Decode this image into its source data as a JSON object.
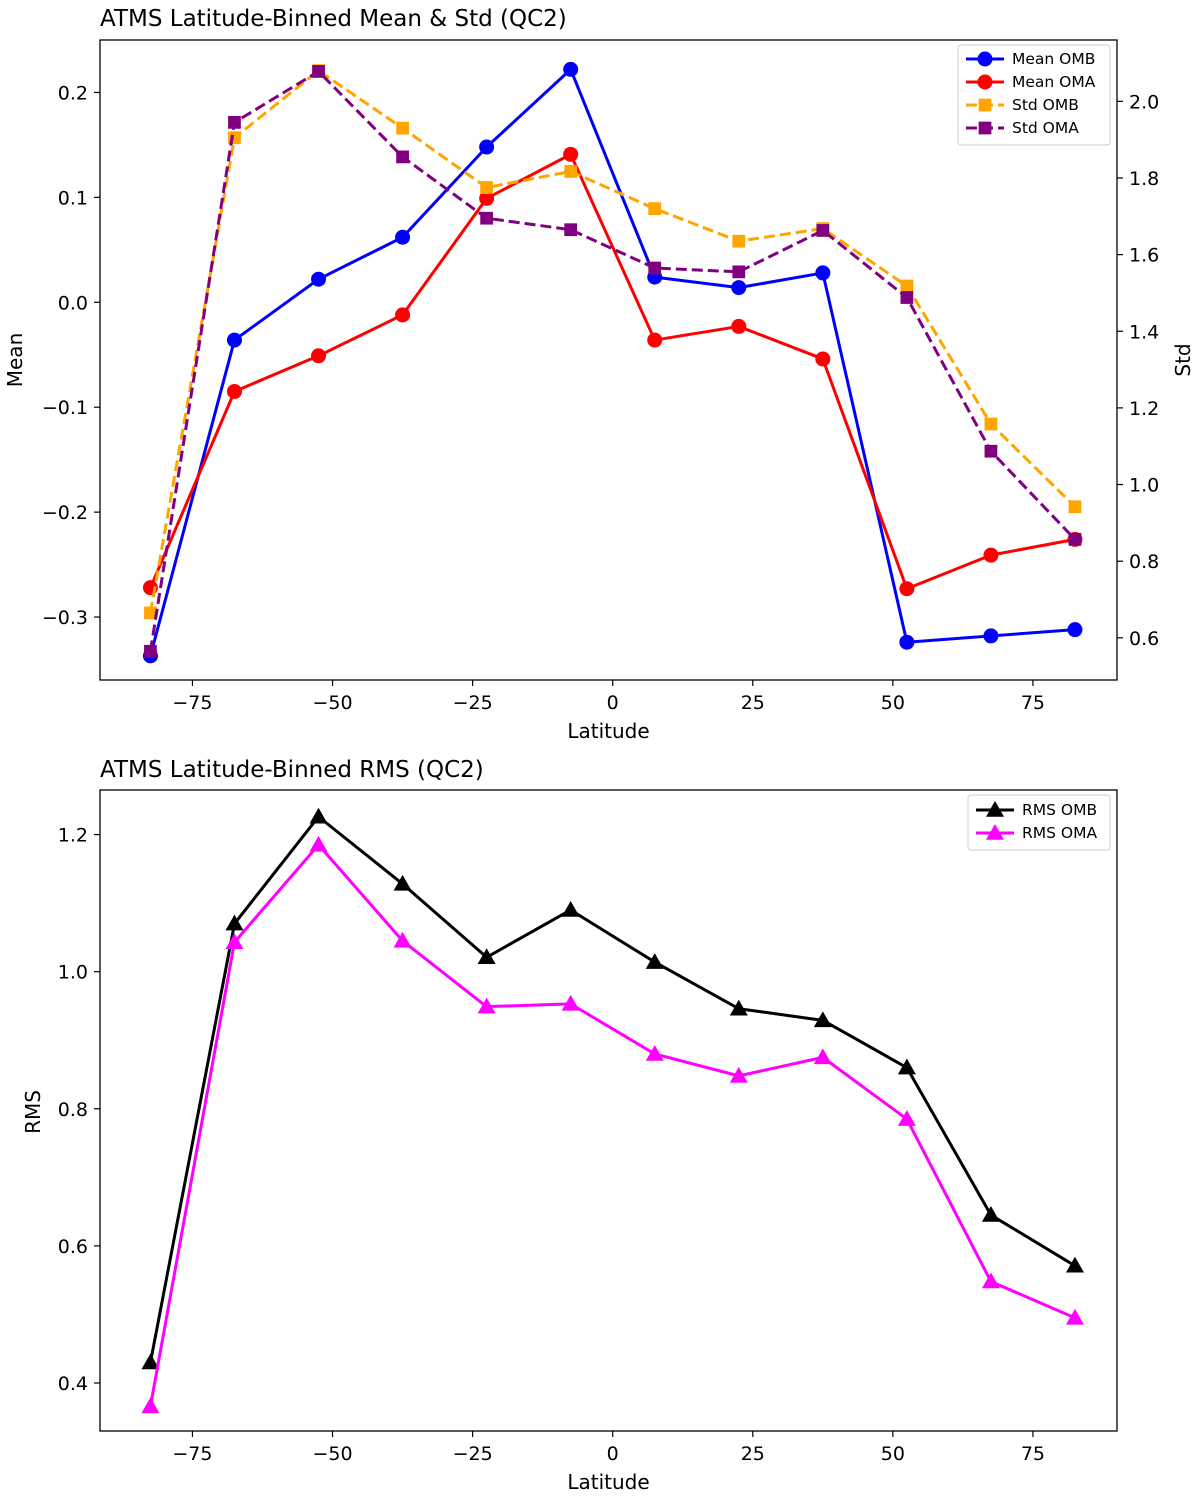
{
  "chart_data": [
    {
      "type": "line",
      "title": "ATMS Latitude-Binned Mean & Std (QC2)",
      "xlabel": "Latitude",
      "ylabel": "Mean",
      "y2label": "Std",
      "x": [
        -82.5,
        -67.5,
        -52.5,
        -37.5,
        -22.5,
        -7.5,
        7.5,
        22.5,
        37.5,
        52.5,
        67.5,
        82.5
      ],
      "xlim": [
        -91.5,
        90
      ],
      "ylim": [
        -0.36,
        0.25
      ],
      "y2lim": [
        0.49,
        2.16
      ],
      "xticks": [
        -75,
        -50,
        -25,
        0,
        25,
        50,
        75
      ],
      "xtick_labels": [
        "−75",
        "−50",
        "−25",
        "0",
        "25",
        "50",
        "75"
      ],
      "yticks": [
        -0.3,
        -0.2,
        -0.1,
        0.0,
        0.1,
        0.2
      ],
      "ytick_labels": [
        "−0.3",
        "−0.2",
        "−0.1",
        "0.0",
        "0.1",
        "0.2"
      ],
      "y2ticks": [
        0.6,
        0.8,
        1.0,
        1.2,
        1.4,
        1.6,
        1.8,
        2.0
      ],
      "y2tick_labels": [
        "0.6",
        "0.8",
        "1.0",
        "1.2",
        "1.4",
        "1.6",
        "1.8",
        "2.0"
      ],
      "grid": false,
      "legend_position": "top-right",
      "series": [
        {
          "name": "Mean OMB",
          "axis": "left",
          "color": "#0000ff",
          "marker": "circle",
          "linestyle": "solid",
          "values": [
            -0.337,
            -0.036,
            0.022,
            0.062,
            0.148,
            0.222,
            0.024,
            0.014,
            0.028,
            -0.324,
            -0.318,
            -0.312
          ]
        },
        {
          "name": "Mean OMA",
          "axis": "left",
          "color": "#ff0000",
          "marker": "circle",
          "linestyle": "solid",
          "values": [
            -0.272,
            -0.085,
            -0.051,
            -0.012,
            0.099,
            0.141,
            -0.036,
            -0.023,
            -0.054,
            -0.273,
            -0.241,
            -0.226
          ]
        },
        {
          "name": "Std OMB",
          "axis": "right",
          "color": "#ffa500",
          "marker": "square",
          "linestyle": "dashed",
          "values": [
            0.665,
            1.905,
            2.08,
            1.93,
            1.775,
            1.817,
            1.72,
            1.635,
            1.668,
            1.518,
            1.158,
            0.942
          ]
        },
        {
          "name": "Std OMA",
          "axis": "right",
          "color": "#800080",
          "marker": "square",
          "linestyle": "dashed",
          "values": [
            0.565,
            1.945,
            2.078,
            1.855,
            1.695,
            1.665,
            1.565,
            1.555,
            1.663,
            1.488,
            1.087,
            0.857
          ]
        }
      ]
    },
    {
      "type": "line",
      "title": "ATMS Latitude-Binned RMS (QC2)",
      "xlabel": "Latitude",
      "ylabel": "RMS",
      "x": [
        -82.5,
        -67.5,
        -52.5,
        -37.5,
        -22.5,
        -7.5,
        7.5,
        22.5,
        37.5,
        52.5,
        67.5,
        82.5
      ],
      "xlim": [
        -91.5,
        90
      ],
      "ylim": [
        0.33,
        1.265
      ],
      "xticks": [
        -75,
        -50,
        -25,
        0,
        25,
        50,
        75
      ],
      "xtick_labels": [
        "−75",
        "−50",
        "−25",
        "0",
        "25",
        "50",
        "75"
      ],
      "yticks": [
        0.4,
        0.6,
        0.8,
        1.0,
        1.2
      ],
      "ytick_labels": [
        "0.4",
        "0.6",
        "0.8",
        "1.0",
        "1.2"
      ],
      "grid": false,
      "legend_position": "top-right",
      "series": [
        {
          "name": "RMS OMB",
          "axis": "left",
          "color": "#000000",
          "marker": "triangle",
          "linestyle": "solid",
          "values": [
            0.43,
            1.07,
            1.226,
            1.128,
            1.021,
            1.09,
            1.014,
            0.946,
            0.929,
            0.86,
            0.645,
            0.571
          ]
        },
        {
          "name": "RMS OMA",
          "axis": "left",
          "color": "#ff00ff",
          "marker": "triangle",
          "linestyle": "solid",
          "values": [
            0.366,
            1.043,
            1.185,
            1.045,
            0.949,
            0.953,
            0.88,
            0.848,
            0.875,
            0.785,
            0.548,
            0.495
          ]
        }
      ]
    }
  ]
}
